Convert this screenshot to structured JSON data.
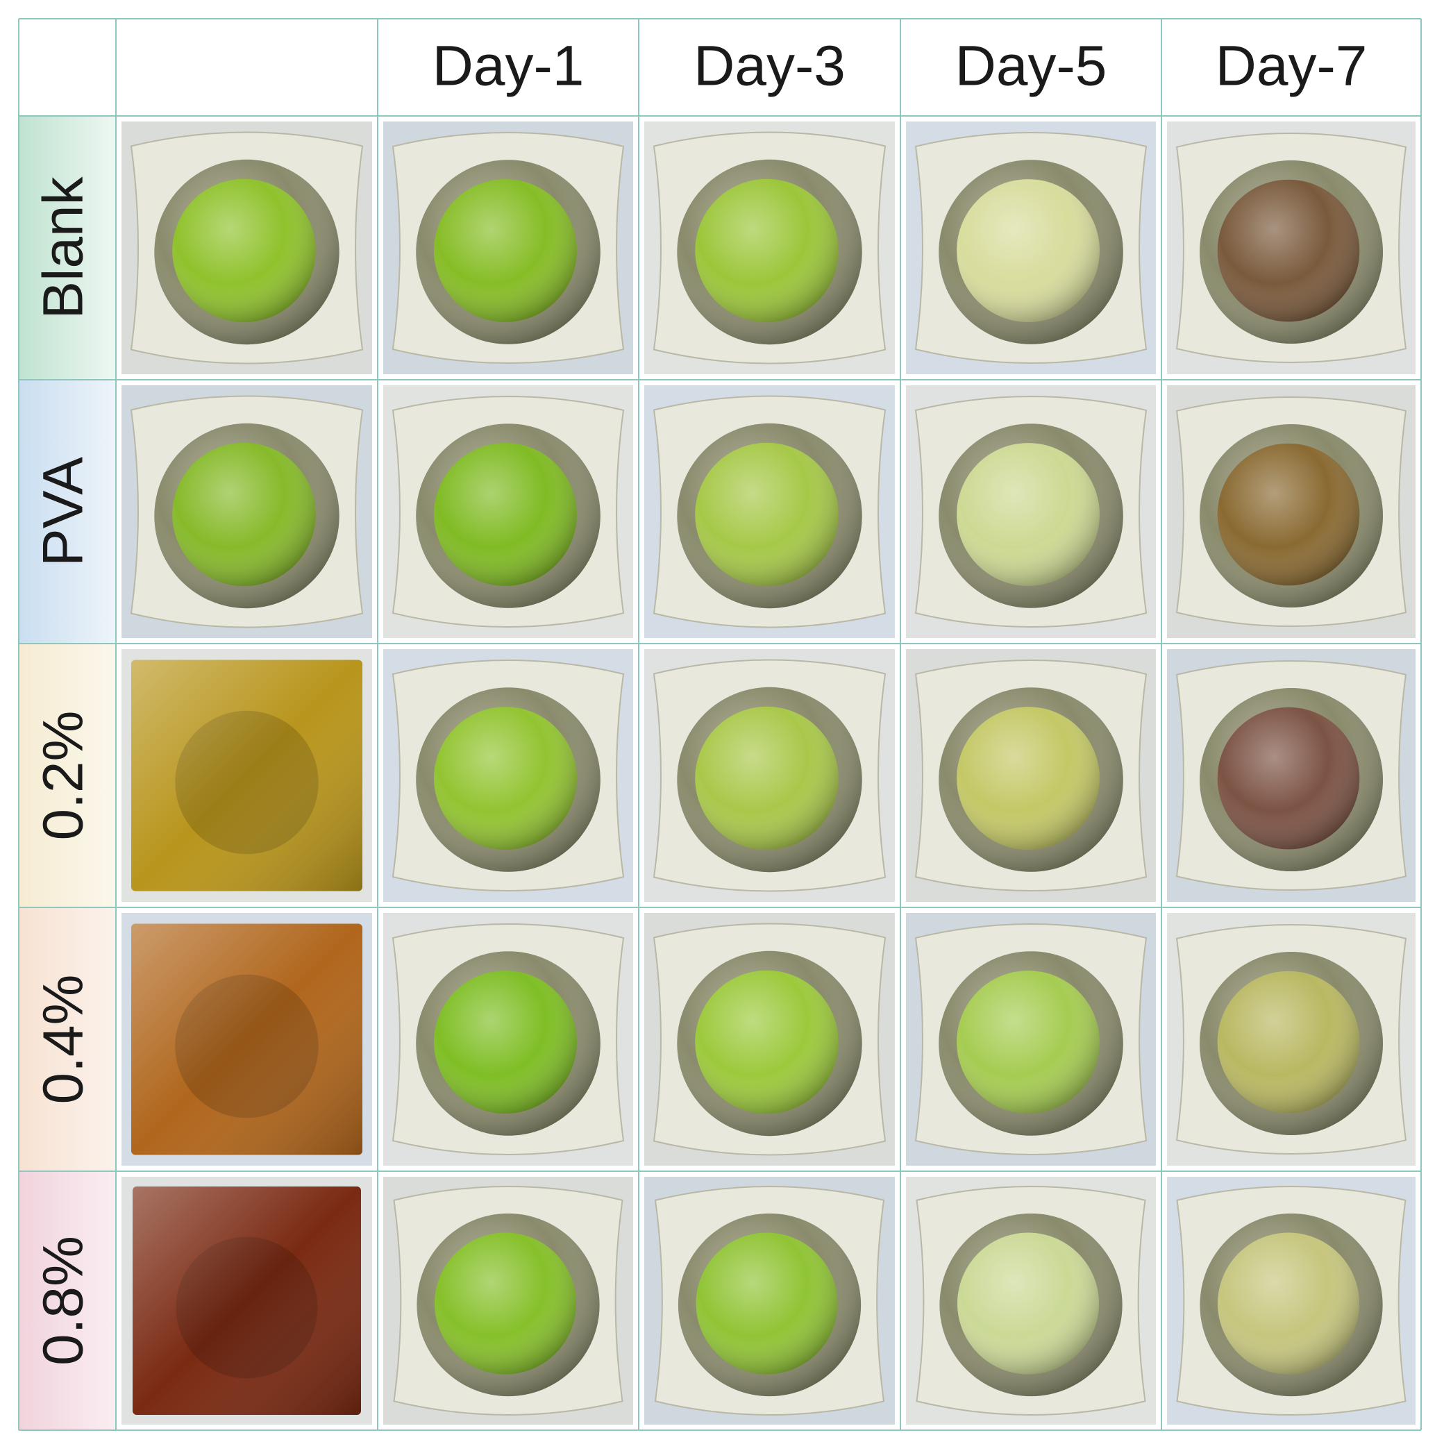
{
  "columns": [
    "Day-1",
    "Day-3",
    "Day-5",
    "Day-7"
  ],
  "rows": [
    "Blank",
    "PVA",
    "0.2%",
    "0.4%",
    "0.8%"
  ]
}
